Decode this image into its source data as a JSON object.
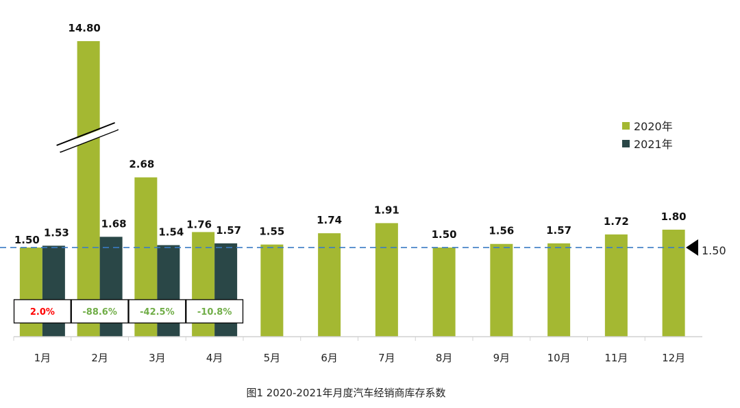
{
  "chart_data": {
    "type": "bar",
    "title": "",
    "caption": "图1  2020-2021年月度汽车经销商库存系数",
    "categories": [
      "1月",
      "2月",
      "3月",
      "4月",
      "5月",
      "6月",
      "7月",
      "8月",
      "9月",
      "10月",
      "11月",
      "12月"
    ],
    "series": [
      {
        "name": "2020年",
        "color": "#a4b832",
        "values": [
          1.5,
          14.8,
          2.68,
          1.76,
          1.55,
          1.74,
          1.91,
          1.5,
          1.56,
          1.57,
          1.72,
          1.8
        ],
        "labels": [
          "1.50",
          "14.80",
          "2.68",
          "1.76",
          "1.55",
          "1.74",
          "1.91",
          "1.50",
          "1.56",
          "1.57",
          "1.72",
          "1.80"
        ]
      },
      {
        "name": "2021年",
        "color": "#2a4747",
        "values": [
          1.53,
          1.68,
          1.54,
          1.57,
          null,
          null,
          null,
          null,
          null,
          null,
          null,
          null
        ],
        "labels": [
          "1.53",
          "1.68",
          "1.54",
          "1.57"
        ]
      }
    ],
    "yoy_change": [
      {
        "label": "2.0%",
        "color": "#ff0000"
      },
      {
        "label": "-88.6%",
        "color": "#70ad47"
      },
      {
        "label": "-42.5%",
        "color": "#70ad47"
      },
      {
        "label": "-10.8%",
        "color": "#70ad47"
      }
    ],
    "reference_line": {
      "value": 1.5,
      "label": "1.50",
      "color": "#3a7cc4",
      "style": "dashed"
    },
    "broken_axis": true,
    "legend_position": "top-right",
    "grid": false,
    "xlabel": "",
    "ylabel": ""
  }
}
